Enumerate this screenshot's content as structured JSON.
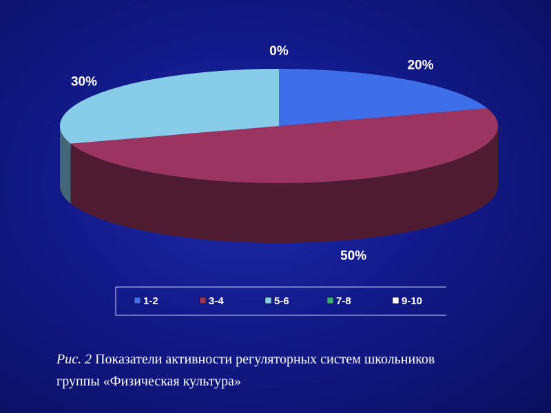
{
  "chart_data": {
    "type": "pie",
    "categories": [
      "1-2",
      "3-4",
      "5-6",
      "7-8",
      "9-10"
    ],
    "values": [
      20,
      50,
      30,
      0,
      0
    ],
    "value_labels": [
      "20%",
      "50%",
      "30%",
      "0%",
      null
    ],
    "colors": [
      "#3f6fe8",
      "#9b3560",
      "#87cdea",
      "#33b36e",
      "#ffffff"
    ],
    "legend": "bottom"
  },
  "caption": {
    "label": "Рис. 2",
    "text": "Показатели активности регуляторных систем школьников группы «Физическая культура»"
  }
}
